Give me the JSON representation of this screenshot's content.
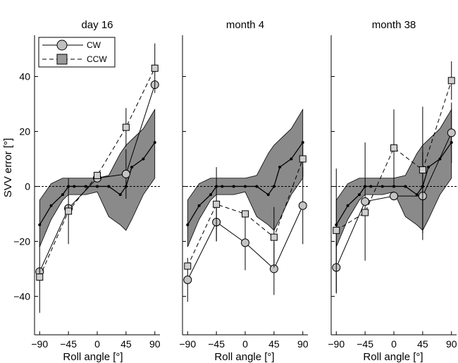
{
  "chart_data": {
    "type": "line",
    "ylabel": "SVV error [°]",
    "xlabel": "Roll angle [°]",
    "xlim": [
      -98,
      98
    ],
    "ylim": [
      -54,
      55
    ],
    "xticks": [
      -90,
      -45,
      0,
      45,
      90
    ],
    "yticks": [
      -40,
      -20,
      0,
      20,
      40
    ],
    "legend": [
      {
        "name": "CW",
        "marker": "circle",
        "linestyle": "solid"
      },
      {
        "name": "CCW",
        "marker": "square",
        "linestyle": "dashed"
      }
    ],
    "reference_band": {
      "x": [
        -90,
        -72,
        -54,
        -45,
        -36,
        -18,
        0,
        18,
        36,
        45,
        54,
        72,
        90
      ],
      "lower": [
        -22,
        -12,
        -5,
        -3,
        -3,
        -3,
        -2,
        -11,
        -14,
        -16,
        -12,
        -3,
        3
      ],
      "upper": [
        -5,
        1,
        3,
        3,
        3,
        3,
        3,
        4,
        12,
        15,
        17,
        21,
        28
      ]
    },
    "reference_mean": {
      "x": [
        -90,
        -72,
        -54,
        -45,
        -36,
        -18,
        0,
        18,
        36,
        45,
        54,
        72,
        90
      ],
      "y": [
        -14,
        -7,
        -3,
        0,
        0,
        0,
        0,
        0,
        -3,
        0,
        7,
        10,
        16
      ]
    },
    "panels": [
      {
        "title": "day 16",
        "series": [
          {
            "name": "CW",
            "x": [
              -90,
              -45,
              0,
              45,
              90
            ],
            "y": [
              -31,
              -8,
              3,
              4.5,
              37
            ],
            "err": [
              0,
              0,
              0,
              9,
              0
            ]
          },
          {
            "name": "CCW",
            "x": [
              -90,
              -45,
              0,
              45,
              90
            ],
            "y": [
              -33,
              -9,
              4,
              21.5,
              43
            ],
            "err": [
              13,
              12,
              0,
              7,
              9
            ]
          }
        ]
      },
      {
        "title": "month 4",
        "series": [
          {
            "name": "CW",
            "x": [
              -90,
              -45,
              0,
              45,
              90
            ],
            "y": [
              -34,
              -13,
              -20.5,
              -30,
              -7
            ],
            "err": [
              8,
              7,
              10,
              9.5,
              14
            ]
          },
          {
            "name": "CCW",
            "x": [
              -90,
              -45,
              0,
              45,
              90
            ],
            "y": [
              -29,
              -6.5,
              -10,
              -18.5,
              10
            ],
            "err": [
              0,
              13.5,
              0,
              11,
              6.5
            ]
          }
        ]
      },
      {
        "title": "month 38",
        "series": [
          {
            "name": "CW",
            "x": [
              -90,
              -45,
              0,
              45,
              90
            ],
            "y": [
              -29.5,
              -5.5,
              -3.5,
              -3.5,
              19.5
            ],
            "err": [
              9.5,
              21.5,
              0,
              16,
              11
            ]
          },
          {
            "name": "CCW",
            "x": [
              -90,
              -45,
              0,
              45,
              90
            ],
            "y": [
              -16,
              -9.5,
              14,
              6,
              38.5
            ],
            "err": [
              22.5,
              0,
              14,
              23,
              7
            ]
          }
        ]
      }
    ]
  }
}
